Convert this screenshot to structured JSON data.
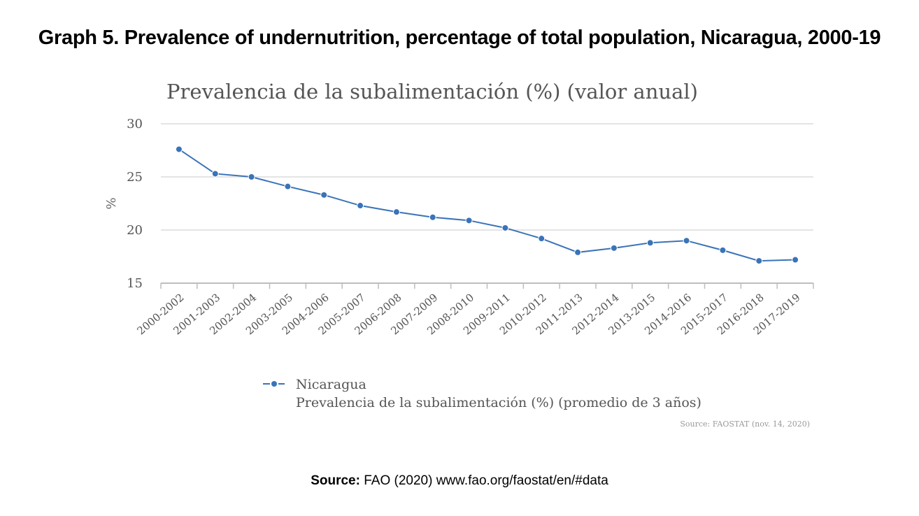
{
  "heading": "Graph 5.  Prevalence of undernutrition, percentage of total population, Nicaragua, 2000-19",
  "footer": {
    "label": "Source:",
    "text": " FAO (2020)  www.fao.org/faostat/en/#data"
  },
  "colors": {
    "series": "#3a73b8",
    "grid": "#dcdcdc",
    "axis": "#bdbdbd",
    "text": "#555555"
  },
  "chart_data": {
    "type": "line",
    "title": "Prevalencia de la subalimentación (%) (valor anual)",
    "ylabel": "%",
    "xlabel": "",
    "ylim": [
      15,
      30
    ],
    "yticks": [
      15,
      20,
      25,
      30
    ],
    "grid": true,
    "categories": [
      "2000-2002",
      "2001-2003",
      "2002-2004",
      "2003-2005",
      "2004-2006",
      "2005-2007",
      "2006-2008",
      "2007-2009",
      "2008-2010",
      "2009-2011",
      "2010-2012",
      "2011-2013",
      "2012-2014",
      "2013-2015",
      "2014-2016",
      "2015-2017",
      "2016-2018",
      "2017-2019"
    ],
    "series": [
      {
        "name": "Nicaragua",
        "values": [
          27.6,
          25.3,
          25.0,
          24.1,
          23.3,
          22.3,
          21.7,
          21.2,
          20.9,
          20.2,
          19.2,
          17.9,
          18.3,
          18.8,
          19.0,
          18.1,
          17.1,
          17.2
        ]
      }
    ],
    "legend": {
      "position": "bottom-left",
      "series_label": "Nicaragua",
      "description": "Prevalencia de la subalimentación (%) (promedio de 3 años)"
    },
    "source_note": "Source: FAOSTAT (nov. 14, 2020)"
  }
}
